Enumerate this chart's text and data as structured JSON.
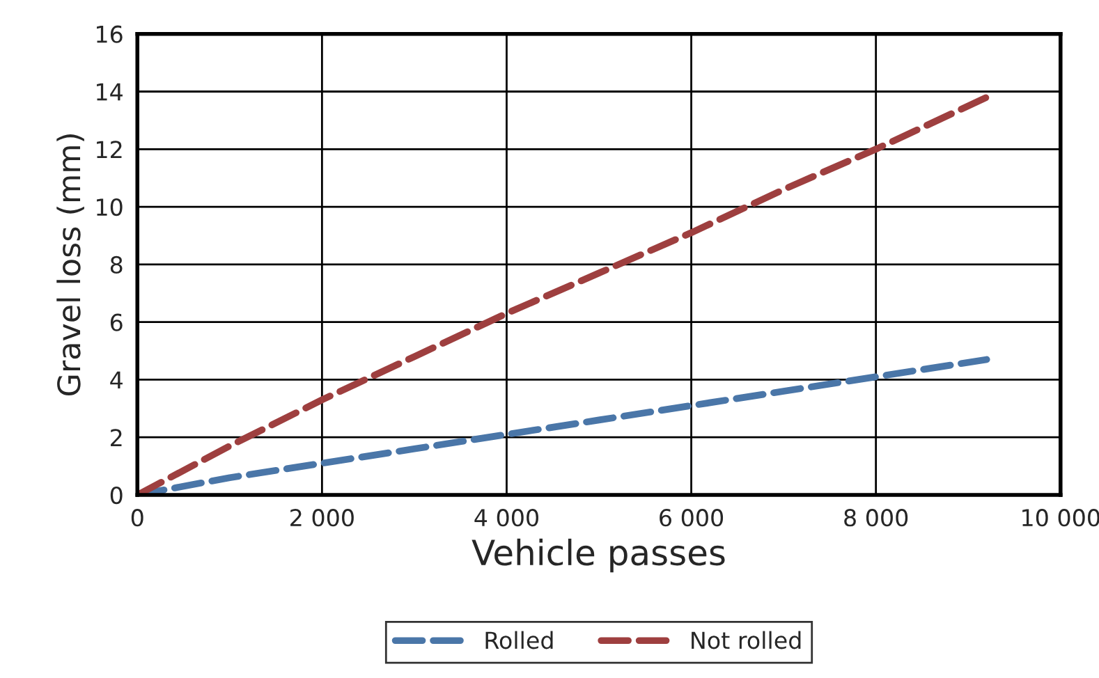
{
  "chart_data": {
    "type": "line",
    "xlabel": "Vehicle passes",
    "ylabel": "Gravel loss (mm)",
    "series": [
      {
        "name": "Rolled",
        "color": "#4a76a8",
        "x": [
          0,
          1000,
          2000,
          3000,
          4000,
          5000,
          6000,
          7000,
          8000,
          9200
        ],
        "values": [
          0,
          0.6,
          1.1,
          1.6,
          2.1,
          2.6,
          3.1,
          3.6,
          4.1,
          4.7
        ]
      },
      {
        "name": "Not rolled",
        "color": "#9e3f3f",
        "x": [
          0,
          1000,
          2000,
          3000,
          4000,
          5000,
          6000,
          7000,
          8000,
          9200
        ],
        "values": [
          0,
          1.7,
          3.3,
          4.8,
          6.3,
          7.7,
          9.1,
          10.6,
          12.0,
          13.8
        ]
      }
    ],
    "xlim": [
      0,
      10000
    ],
    "xticks": [
      0,
      {
        "value": 2000,
        "label": "2 000"
      },
      {
        "value": 4000,
        "label": "4 000"
      },
      {
        "value": 6000,
        "label": "6 000"
      },
      {
        "value": 8000,
        "label": "8 000"
      },
      {
        "value": 10000,
        "label": "10 000"
      }
    ],
    "ylim": [
      0,
      16
    ],
    "yticks": [
      0,
      2,
      4,
      6,
      8,
      10,
      12,
      14,
      16
    ],
    "grid": true,
    "legend": "bottom",
    "line_style": "dashed",
    "marker": "none"
  }
}
